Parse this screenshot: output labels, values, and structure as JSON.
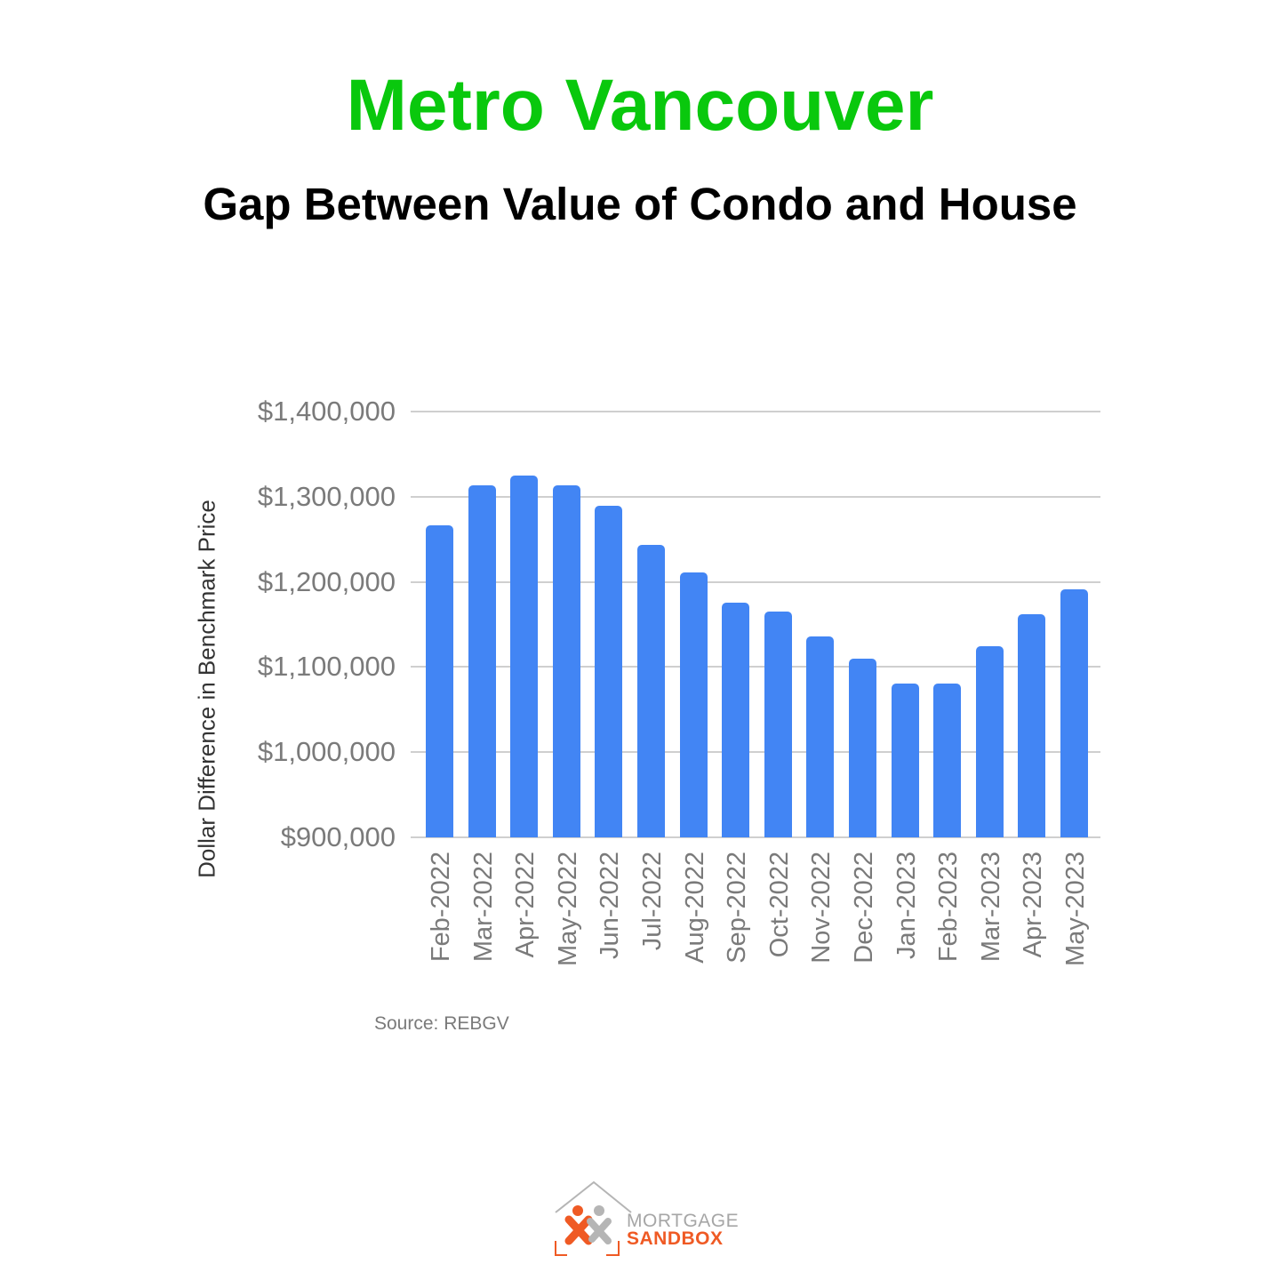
{
  "header": {
    "title": "Metro Vancouver",
    "subtitle": "Gap Between Value of Condo and House"
  },
  "source": "Source: REBGV",
  "logo": {
    "line1": "MORTGAGE",
    "line2": "SANDBOX"
  },
  "colors": {
    "title": "#09c80d",
    "bar": "#4285f4",
    "logo_orange": "#ef5a24",
    "logo_gray": "#a6a6a6"
  },
  "chart_data": {
    "type": "bar",
    "title": "Gap Between Value of Condo and House",
    "xlabel": "",
    "ylabel": "Dollar Difference in Benchmark Price",
    "ylim": [
      900000,
      1400000
    ],
    "yticks": [
      "$900,000",
      "$1,000,000",
      "$1,100,000",
      "$1,200,000",
      "$1,300,000",
      "$1,400,000"
    ],
    "grid": true,
    "legend": "none",
    "categories": [
      "Feb-2022",
      "Mar-2022",
      "Apr-2022",
      "May-2022",
      "Jun-2022",
      "Jul-2022",
      "Aug-2022",
      "Sep-2022",
      "Oct-2022",
      "Nov-2022",
      "Dec-2022",
      "Jan-2023",
      "Feb-2023",
      "Mar-2023",
      "Apr-2023",
      "May-2023"
    ],
    "series": [
      {
        "name": "Dollar Difference",
        "values": [
          1266000,
          1313000,
          1325000,
          1313000,
          1289000,
          1243000,
          1211000,
          1176000,
          1165000,
          1136000,
          1110000,
          1081000,
          1081000,
          1124000,
          1162000,
          1191000
        ]
      }
    ],
    "source": "Source: REBGV"
  }
}
